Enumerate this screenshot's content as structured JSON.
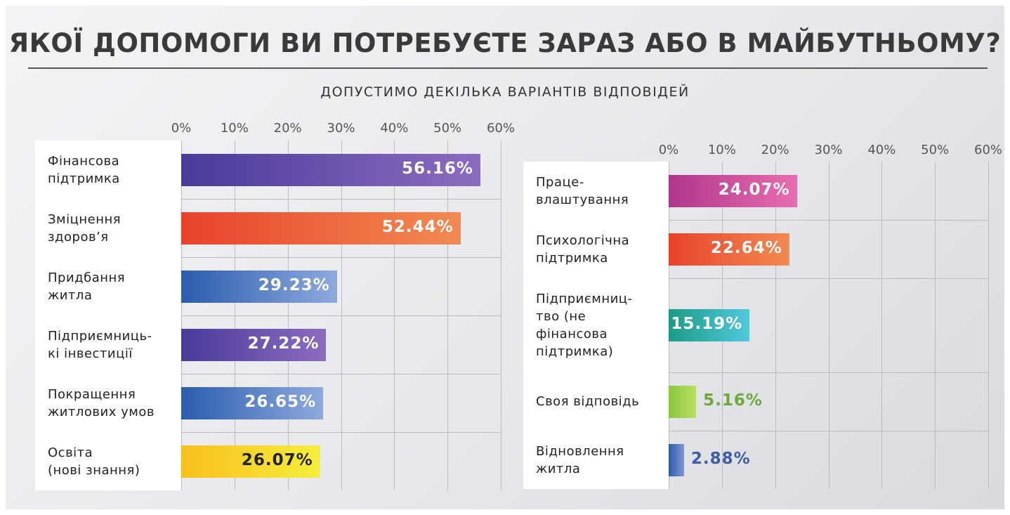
{
  "header": {
    "title": "ЯКОЇ ДОПОМОГИ ВИ ПОТРЕБУЄТЕ ЗАРАЗ АБО В МАЙБУТНЬОМУ?",
    "subtitle": "ДОПУСТИМО ДЕКІЛЬКА ВАРІАНТІВ ВІДПОВІДЕЙ"
  },
  "chart_data": [
    {
      "type": "bar",
      "orientation": "horizontal",
      "categories": [
        "Фінансова\nпідтримка",
        "Зміцнення\nздоров’я",
        "Придбання\nжитла",
        "Підприємниць-\nкі інвестиції",
        "Покращення\nжитлових умов",
        "Освіта\n(нові знання)"
      ],
      "values": [
        56.16,
        52.44,
        29.23,
        27.22,
        26.65,
        26.07
      ],
      "value_labels": [
        "56.16%",
        "52.44%",
        "29.23%",
        "27.22%",
        "26.65%",
        "26.07%"
      ],
      "colors": [
        [
          "#4a3a9a",
          "#8c6cc0"
        ],
        [
          "#e8432a",
          "#f28a52"
        ],
        [
          "#2a5cae",
          "#8eaadd"
        ],
        [
          "#4a3a9a",
          "#8c6cc0"
        ],
        [
          "#2a5cae",
          "#8eaadd"
        ],
        [
          "#f8c01c",
          "#f6ee3c"
        ]
      ],
      "value_label_colors": [
        "#ffffff",
        "#ffffff",
        "#ffffff",
        "#ffffff",
        "#ffffff",
        "#222222"
      ],
      "xlim": [
        0,
        60
      ],
      "xticks": [
        {
          "value": 0,
          "label": "0%"
        },
        {
          "value": 10,
          "label": "10%"
        },
        {
          "value": 20,
          "label": "20%"
        },
        {
          "value": 30,
          "label": "30%"
        },
        {
          "value": 40,
          "label": "40%"
        },
        {
          "value": 50,
          "label": "50%"
        },
        {
          "value": 60,
          "label": "60%"
        }
      ],
      "grid": true
    },
    {
      "type": "bar",
      "orientation": "horizontal",
      "categories": [
        "Праце-\nвлаштування",
        "Психологічна\nпідтримка",
        "Підприємниц-\nтво (не\nфінансова\nпідтримка)",
        "Своя відповідь",
        "Відновлення\nжитла"
      ],
      "values": [
        24.07,
        22.64,
        15.19,
        5.16,
        2.88
      ],
      "value_labels": [
        "24.07%",
        "22.64%",
        "15.19%",
        "5.16%",
        "2.88%"
      ],
      "colors": [
        [
          "#b0368d",
          "#e86db0"
        ],
        [
          "#e8432a",
          "#f28a52"
        ],
        [
          "#1c9c86",
          "#52c8dc"
        ],
        [
          "#8cc63e",
          "#b8de60"
        ],
        [
          "#2e5aa8",
          "#7c98d2"
        ]
      ],
      "value_label_colors": [
        "#ffffff",
        "#ffffff",
        "#ffffff",
        "#6ea83a",
        "#3d5ca8"
      ],
      "xlim": [
        0,
        60
      ],
      "xticks": [
        {
          "value": 0,
          "label": "0%"
        },
        {
          "value": 10,
          "label": "10%"
        },
        {
          "value": 20,
          "label": "20%"
        },
        {
          "value": 30,
          "label": "30%"
        },
        {
          "value": 40,
          "label": "40%"
        },
        {
          "value": 50,
          "label": "50%"
        },
        {
          "value": 60,
          "label": "60%"
        }
      ],
      "grid": true
    }
  ]
}
